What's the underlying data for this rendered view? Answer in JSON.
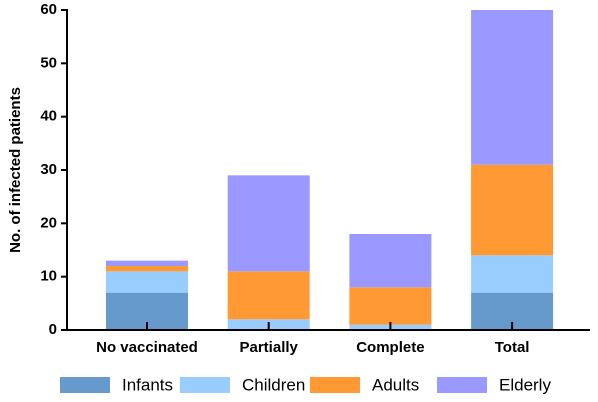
{
  "chart_data": {
    "type": "stacked_bar",
    "y_label": "No. of infected patients",
    "categories": [
      "No vaccinated",
      "Partially",
      "Complete",
      "Total"
    ],
    "series": [
      {
        "name": "Infants",
        "color": "#6699cc",
        "values": [
          7,
          0,
          0,
          7
        ]
      },
      {
        "name": "Children",
        "color": "#99ccff",
        "values": [
          4,
          2,
          1,
          7
        ]
      },
      {
        "name": "Adults",
        "color": "#ff9933",
        "values": [
          1,
          9,
          7,
          17
        ]
      },
      {
        "name": "Elderly",
        "color": "#9999ff",
        "values": [
          1,
          18,
          10,
          29
        ]
      }
    ],
    "ylim": [
      0,
      60
    ],
    "yticks": [
      0,
      10,
      20,
      30,
      40,
      50,
      60
    ],
    "legend": "bottom",
    "grid": false
  }
}
